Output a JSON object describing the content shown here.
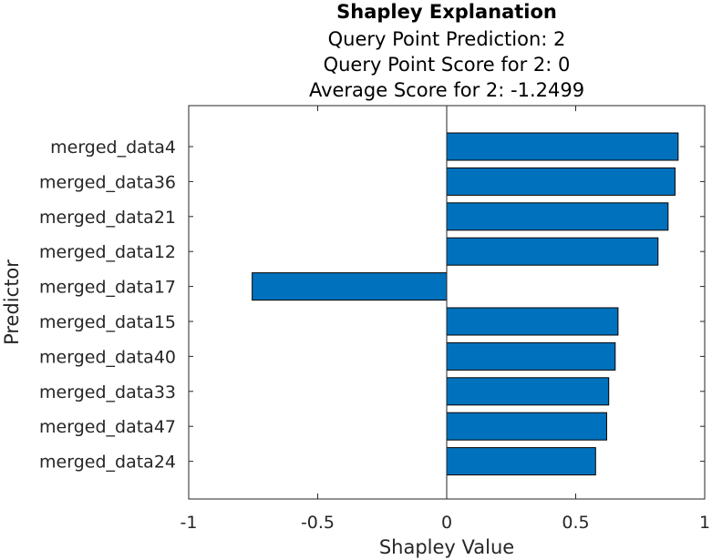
{
  "chart_data": {
    "type": "bar",
    "orientation": "horizontal",
    "title": "Shapley Explanation",
    "subtitle_lines": [
      "Query Point Prediction: 2",
      "Query Point Score for 2: 0",
      "Average Score for 2: -1.2499"
    ],
    "xlabel": "Shapley Value",
    "ylabel": "Predictor",
    "xlim": [
      -1,
      1
    ],
    "xticks": [
      -1,
      -0.5,
      0,
      0.5,
      1
    ],
    "xtick_labels": [
      "-1",
      "-0.5",
      "0",
      "0.5",
      "1"
    ],
    "categories": [
      "merged_data4",
      "merged_data36",
      "merged_data21",
      "merged_data12",
      "merged_data17",
      "merged_data15",
      "merged_data40",
      "merged_data33",
      "merged_data47",
      "merged_data24"
    ],
    "values": [
      0.897,
      0.885,
      0.858,
      0.819,
      -0.754,
      0.664,
      0.653,
      0.628,
      0.62,
      0.577
    ],
    "bar_color": "#0072BD",
    "grid": false
  }
}
